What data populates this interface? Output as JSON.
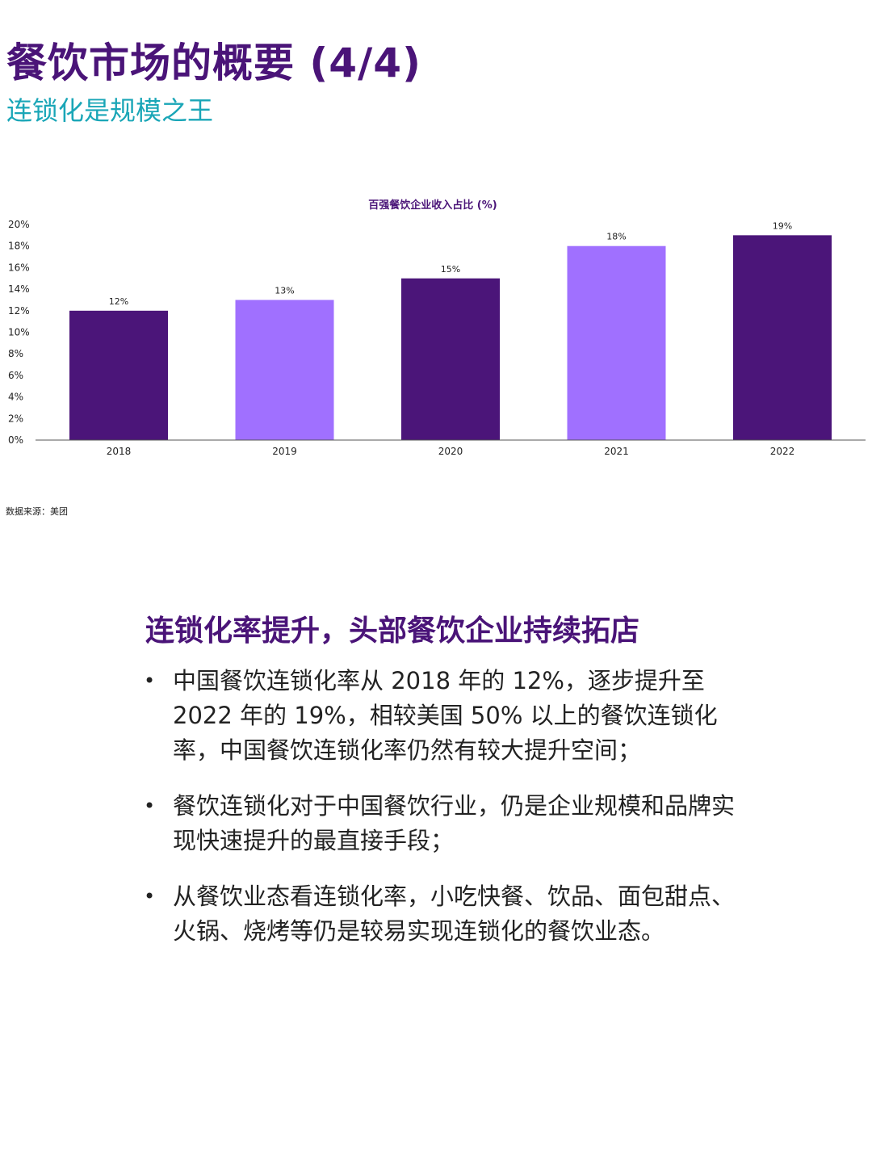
{
  "header": {
    "title": "餐饮市场的概要 (4/4)",
    "subtitle": "连锁化是规模之王"
  },
  "chart_data": {
    "type": "bar",
    "title": "百强餐饮企业收入占比 (%)",
    "categories": [
      "2018",
      "2019",
      "2020",
      "2021",
      "2022"
    ],
    "values": [
      12,
      13,
      15,
      18,
      19
    ],
    "data_labels": [
      "12%",
      "13%",
      "15%",
      "18%",
      "19%"
    ],
    "bar_colors": [
      "#4b1579",
      "#a070ff",
      "#4b1579",
      "#a070ff",
      "#4b1579"
    ],
    "ylim": [
      0,
      20
    ],
    "yticks": [
      "0%",
      "2%",
      "4%",
      "6%",
      "8%",
      "10%",
      "12%",
      "14%",
      "16%",
      "18%",
      "20%"
    ],
    "grid": false,
    "legend": "none"
  },
  "source": "数据来源：美团",
  "section": {
    "heading": "连锁化率提升，头部餐饮企业持续拓店",
    "bullet_symbol": "•",
    "bullets": [
      "中国餐饮连锁化率从 2018 年的 12%，逐步提升至 2022 年的 19%，相较美国 50% 以上的餐饮连锁化率，中国餐饮连锁化率仍然有较大提升空间；",
      "餐饮连锁化对于中国餐饮行业，仍是企业规模和品牌实现快速提升的最直接手段；",
      "从餐饮业态看连锁化率，小吃快餐、饮品、面包甜点、火锅、烧烤等仍是较易实现连锁化的餐饮业态。"
    ]
  },
  "colors": {
    "title": "#4a1478",
    "subtitle": "#1aa6b7",
    "bar_dark": "#4b1579",
    "bar_light": "#a070ff"
  }
}
